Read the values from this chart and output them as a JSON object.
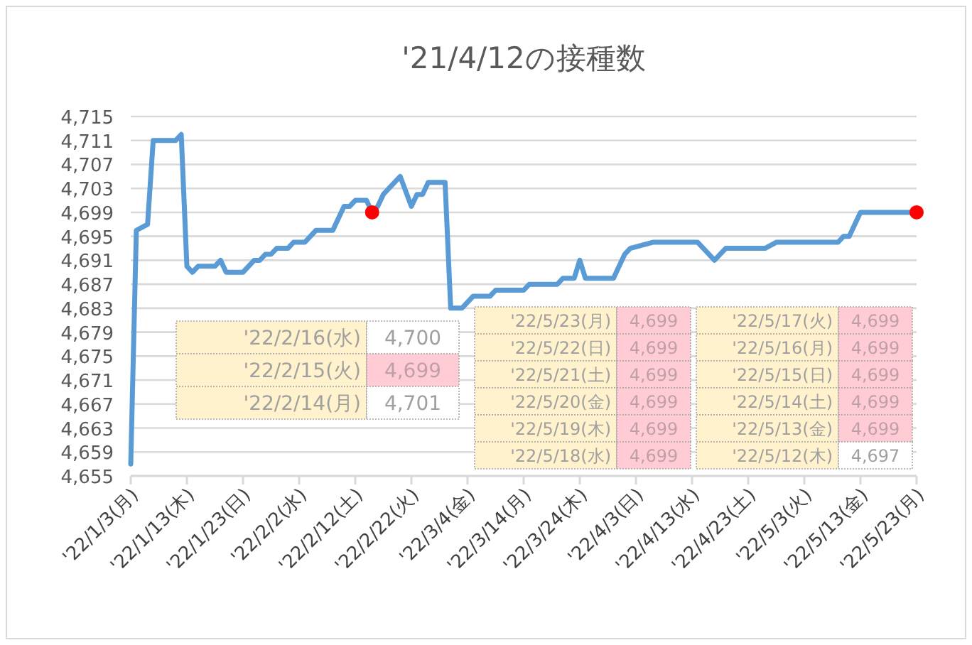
{
  "chart_data": {
    "type": "line",
    "title": "'21/4/12の接種数",
    "series": [
      {
        "color": "#5b9bd5",
        "x": [
          "2022-01-03",
          "2022-01-04",
          "2022-01-06",
          "2022-01-07",
          "2022-01-11",
          "2022-01-12",
          "2022-01-13",
          "2022-01-14",
          "2022-01-15",
          "2022-01-18",
          "2022-01-19",
          "2022-01-20",
          "2022-01-23",
          "2022-01-25",
          "2022-01-26",
          "2022-01-27",
          "2022-01-28",
          "2022-01-29",
          "2022-01-31",
          "2022-02-01",
          "2022-02-03",
          "2022-02-05",
          "2022-02-08",
          "2022-02-10",
          "2022-02-11",
          "2022-02-12",
          "2022-02-14",
          "2022-02-15",
          "2022-02-16",
          "2022-02-17",
          "2022-02-18",
          "2022-02-20",
          "2022-02-22",
          "2022-02-23",
          "2022-02-24",
          "2022-02-25",
          "2022-02-28",
          "2022-03-01",
          "2022-03-03",
          "2022-03-05",
          "2022-03-08",
          "2022-03-09",
          "2022-03-14",
          "2022-03-15",
          "2022-03-20",
          "2022-03-21",
          "2022-03-23",
          "2022-03-24",
          "2022-03-25",
          "2022-03-30",
          "2022-04-01",
          "2022-04-02",
          "2022-04-06",
          "2022-04-14",
          "2022-04-16",
          "2022-04-17",
          "2022-04-19",
          "2022-04-26",
          "2022-04-28",
          "2022-05-09",
          "2022-05-10",
          "2022-05-11",
          "2022-05-12",
          "2022-05-13",
          "2022-05-23"
        ],
        "values": [
          4657,
          4696,
          4697,
          4711,
          4711,
          4712,
          4690,
          4689,
          4690,
          4690,
          4691,
          4689,
          4689,
          4691,
          4691,
          4692,
          4692,
          4693,
          4693,
          4694,
          4694,
          4696,
          4696,
          4700,
          4700,
          4701,
          4701,
          4699,
          4700,
          4702,
          4703,
          4705,
          4700,
          4702,
          4702,
          4704,
          4704,
          4683,
          4683,
          4685,
          4685,
          4686,
          4686,
          4687,
          4687,
          4688,
          4688,
          4691,
          4688,
          4688,
          4692,
          4693,
          4694,
          4694,
          4692,
          4691,
          4693,
          4693,
          4694,
          4694,
          4695,
          4695,
          4697,
          4699,
          4699
        ]
      },
      {
        "type": "scatter",
        "color": "#ff0000",
        "x": [
          "2022-02-15",
          "2022-05-23"
        ],
        "values": [
          4699,
          4699
        ]
      }
    ],
    "xlim": [
      "2022-01-03",
      "2022-05-23"
    ],
    "xticks": [
      {
        "value": "2022-01-03",
        "label": "'22/1/3(月)"
      },
      {
        "value": "2022-01-13",
        "label": "'22/1/13(木)"
      },
      {
        "value": "2022-01-23",
        "label": "'22/1/23(日)"
      },
      {
        "value": "2022-02-02",
        "label": "'22/2/2(水)"
      },
      {
        "value": "2022-02-12",
        "label": "'22/2/12(土)"
      },
      {
        "value": "2022-02-22",
        "label": "'22/2/22(火)"
      },
      {
        "value": "2022-03-04",
        "label": "'22/3/4(金)"
      },
      {
        "value": "2022-03-14",
        "label": "'22/3/14(月)"
      },
      {
        "value": "2022-03-24",
        "label": "'22/3/24(木)"
      },
      {
        "value": "2022-04-03",
        "label": "'22/4/3(日)"
      },
      {
        "value": "2022-04-13",
        "label": "'22/4/13(水)"
      },
      {
        "value": "2022-04-23",
        "label": "'22/4/23(土)"
      },
      {
        "value": "2022-05-03",
        "label": "'22/5/3(火)"
      },
      {
        "value": "2022-05-13",
        "label": "'22/5/13(金)"
      },
      {
        "value": "2022-05-23",
        "label": "'22/5/23(月)"
      }
    ],
    "ylim": [
      4655,
      4715
    ],
    "yticks": [
      {
        "value": 4655,
        "label": "4,655"
      },
      {
        "value": 4659,
        "label": "4,659"
      },
      {
        "value": 4663,
        "label": "4,663"
      },
      {
        "value": 4667,
        "label": "4,667"
      },
      {
        "value": 4671,
        "label": "4,671"
      },
      {
        "value": 4675,
        "label": "4,675"
      },
      {
        "value": 4679,
        "label": "4,679"
      },
      {
        "value": 4683,
        "label": "4,683"
      },
      {
        "value": 4687,
        "label": "4,687"
      },
      {
        "value": 4691,
        "label": "4,691"
      },
      {
        "value": 4695,
        "label": "4,695"
      },
      {
        "value": 4699,
        "label": "4,699"
      },
      {
        "value": 4703,
        "label": "4,703"
      },
      {
        "value": 4707,
        "label": "4,707"
      },
      {
        "value": 4711,
        "label": "4,711"
      },
      {
        "value": 4715,
        "label": "4,715"
      }
    ],
    "grid": "y",
    "annotations": [
      "'22/2/16(水)",
      "4,700",
      "'22/2/15(火)",
      "4,699",
      "'22/2/14(月)",
      "4,701",
      "'22/5/23(月)",
      "4,699",
      "'22/5/22(日)",
      "4,699",
      "'22/5/21(土)",
      "4,699",
      "'22/5/20(金)",
      "4,699",
      "'22/5/19(木)",
      "4,699",
      "'22/5/18(水)",
      "4,699",
      "'22/5/17(火)",
      "4,699",
      "'22/5/16(月)",
      "4,699",
      "'22/5/15(日)",
      "4,699",
      "'22/5/14(土)",
      "4,699",
      "'22/5/13(金)",
      "4,699",
      "'22/5/12(木)",
      "4,697"
    ]
  }
}
